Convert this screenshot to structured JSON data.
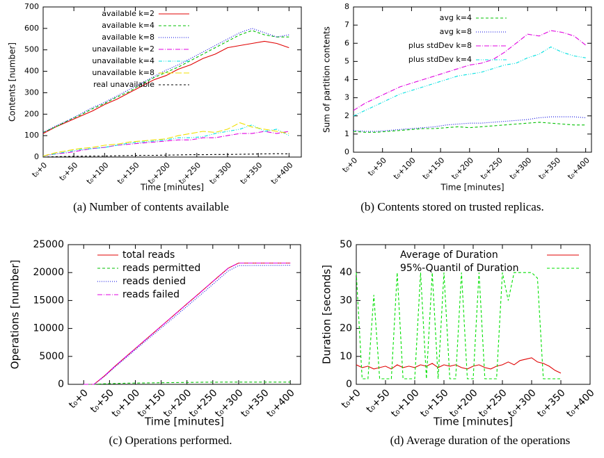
{
  "chart_data": [
    {
      "type": "line",
      "caption": "(a) Number of contents available",
      "xlabel": "Time [minutes]",
      "ylabel": "Contents [number]",
      "legend": "top left",
      "x": [
        0,
        20,
        40,
        60,
        80,
        100,
        120,
        140,
        160,
        180,
        200,
        220,
        240,
        260,
        280,
        300,
        320,
        340,
        360,
        380,
        400
      ],
      "xlim": [
        0,
        420
      ],
      "ylim": [
        0,
        700
      ],
      "xticks": [
        {
          "value": 0,
          "label": "t₀+0"
        },
        {
          "value": 50,
          "label": "t₀+50"
        },
        {
          "value": 100,
          "label": "t₀+100"
        },
        {
          "value": 150,
          "label": "t₀+150"
        },
        {
          "value": 200,
          "label": "t₀+200"
        },
        {
          "value": 250,
          "label": "t₀+250"
        },
        {
          "value": 300,
          "label": "t₀+300"
        },
        {
          "value": 350,
          "label": "t₀+350"
        },
        {
          "value": 400,
          "label": "t₀+400"
        }
      ],
      "yticks": [
        0,
        100,
        200,
        300,
        400,
        500,
        600,
        700
      ],
      "series": [
        {
          "name": "available k=2",
          "color": "#e00000",
          "values": [
            110,
            140,
            165,
            190,
            215,
            245,
            270,
            300,
            330,
            360,
            380,
            410,
            430,
            460,
            480,
            510,
            520,
            530,
            540,
            530,
            510
          ]
        },
        {
          "name": "available k=4",
          "color": "#00c000",
          "values": [
            115,
            140,
            170,
            195,
            225,
            250,
            280,
            305,
            340,
            370,
            395,
            420,
            450,
            480,
            510,
            540,
            570,
            590,
            570,
            560,
            560
          ]
        },
        {
          "name": "available k=8",
          "color": "#0000e0",
          "values": [
            115,
            145,
            170,
            200,
            230,
            255,
            285,
            315,
            345,
            375,
            405,
            430,
            460,
            490,
            520,
            550,
            580,
            600,
            580,
            560,
            570
          ]
        },
        {
          "name": "unavailable k=2",
          "color": "#e000e0",
          "values": [
            5,
            15,
            20,
            30,
            40,
            45,
            55,
            60,
            65,
            70,
            75,
            80,
            80,
            90,
            90,
            100,
            110,
            110,
            120,
            110,
            120
          ]
        },
        {
          "name": "unavailable k=4",
          "color": "#00e0e0",
          "values": [
            5,
            15,
            25,
            35,
            40,
            45,
            55,
            65,
            70,
            75,
            80,
            90,
            90,
            95,
            110,
            120,
            130,
            150,
            120,
            130,
            100
          ]
        },
        {
          "name": "unavailable k=8",
          "color": "#f0e000",
          "values": [
            5,
            20,
            30,
            40,
            45,
            55,
            60,
            70,
            75,
            80,
            85,
            100,
            110,
            120,
            115,
            130,
            160,
            140,
            130,
            120,
            110
          ]
        },
        {
          "name": "real unavailable",
          "color": "#000000",
          "values": [
            0,
            2,
            3,
            4,
            5,
            5,
            6,
            7,
            8,
            8,
            9,
            10,
            11,
            11,
            12,
            12,
            13,
            14,
            15,
            16,
            15
          ]
        }
      ]
    },
    {
      "type": "line",
      "caption": "(b) Contents stored on trusted replicas.",
      "xlabel": "Time [minutes]",
      "ylabel": "Sum of partition contents",
      "legend": "top left",
      "x": [
        0,
        20,
        40,
        60,
        80,
        100,
        120,
        140,
        160,
        180,
        200,
        220,
        240,
        260,
        280,
        300,
        320,
        340,
        360,
        380,
        400
      ],
      "xlim": [
        0,
        410
      ],
      "ylim": [
        0,
        8
      ],
      "xticks": [
        {
          "value": 0,
          "label": "t₀+0"
        },
        {
          "value": 50,
          "label": "t₀+50"
        },
        {
          "value": 100,
          "label": "t₀+100"
        },
        {
          "value": 150,
          "label": "t₀+150"
        },
        {
          "value": 200,
          "label": "t₀+200"
        },
        {
          "value": 250,
          "label": "t₀+250"
        },
        {
          "value": 300,
          "label": "t₀+300"
        },
        {
          "value": 350,
          "label": "t₀+350"
        },
        {
          "value": 400,
          "label": "t₀+400"
        }
      ],
      "yticks": [
        0,
        1,
        2,
        3,
        4,
        5,
        6,
        7,
        8
      ],
      "series": [
        {
          "name": "avg k=4",
          "color": "#00c000",
          "values": [
            1.15,
            1.1,
            1.1,
            1.15,
            1.2,
            1.25,
            1.3,
            1.3,
            1.35,
            1.4,
            1.35,
            1.4,
            1.45,
            1.5,
            1.55,
            1.6,
            1.65,
            1.6,
            1.55,
            1.5,
            1.5
          ]
        },
        {
          "name": "avg k=8",
          "color": "#0000e0",
          "values": [
            1.2,
            1.15,
            1.15,
            1.2,
            1.25,
            1.3,
            1.35,
            1.4,
            1.5,
            1.55,
            1.6,
            1.6,
            1.65,
            1.7,
            1.75,
            1.8,
            1.9,
            1.95,
            1.95,
            1.95,
            1.9
          ]
        },
        {
          "name": "plus stdDev k=8",
          "color": "#e000e0",
          "values": [
            2.3,
            2.7,
            3.0,
            3.3,
            3.6,
            3.8,
            4.0,
            4.2,
            4.4,
            4.6,
            4.8,
            4.9,
            5.1,
            5.5,
            6.0,
            6.5,
            6.4,
            6.7,
            6.6,
            6.4,
            5.9
          ]
        },
        {
          "name": "plus stdDev k=4",
          "color": "#00e0e0",
          "values": [
            2.0,
            2.3,
            2.6,
            2.9,
            3.2,
            3.4,
            3.6,
            3.8,
            4.0,
            4.2,
            4.3,
            4.4,
            4.6,
            4.8,
            4.9,
            5.2,
            5.4,
            5.8,
            5.5,
            5.3,
            5.2
          ]
        }
      ]
    },
    {
      "type": "line",
      "caption": "(c) Operations performed.",
      "xlabel": "Time [minutes]",
      "ylabel": "Operations [number]",
      "legend": "top left",
      "x": [
        0,
        20,
        40,
        60,
        80,
        100,
        120,
        140,
        160,
        180,
        200,
        220,
        240,
        260,
        280,
        300,
        400
      ],
      "xlim": [
        -30,
        420
      ],
      "ylim": [
        0,
        25000
      ],
      "xticks": [
        {
          "value": 0,
          "label": "t₀+0"
        },
        {
          "value": 50,
          "label": "t₀+50"
        },
        {
          "value": 100,
          "label": "t₀+100"
        },
        {
          "value": 150,
          "label": "t₀+150"
        },
        {
          "value": 200,
          "label": "t₀+200"
        },
        {
          "value": 250,
          "label": "t₀+250"
        },
        {
          "value": 300,
          "label": "t₀+300"
        },
        {
          "value": 350,
          "label": "t₀+350"
        },
        {
          "value": 400,
          "label": "t₀+400"
        }
      ],
      "yticks": [
        0,
        5000,
        10000,
        15000,
        20000,
        25000
      ],
      "series": [
        {
          "name": "total reads",
          "color": "#e00000",
          "values": [
            0,
            0,
            1500,
            3200,
            4800,
            6400,
            8000,
            9600,
            11200,
            12800,
            14400,
            16000,
            17600,
            19200,
            20800,
            21700,
            21700
          ]
        },
        {
          "name": "reads permitted",
          "color": "#00c000",
          "values": [
            0,
            0,
            100,
            150,
            200,
            220,
            250,
            270,
            300,
            320,
            340,
            360,
            380,
            390,
            400,
            400,
            400
          ]
        },
        {
          "name": "reads denied",
          "color": "#0000e0",
          "values": [
            0,
            0,
            1400,
            3050,
            4600,
            6200,
            7750,
            9300,
            10850,
            12400,
            13950,
            15550,
            17100,
            18700,
            20300,
            21250,
            21300
          ]
        },
        {
          "name": "reads failed",
          "color": "#e000e0",
          "values": [
            0,
            0,
            1500,
            3200,
            4800,
            6400,
            8000,
            9600,
            11200,
            12800,
            14400,
            16000,
            17600,
            19200,
            20800,
            21700,
            21700
          ]
        }
      ]
    },
    {
      "type": "line",
      "caption": "(d) Average duration of the operations",
      "xlabel": "Time [minutes]",
      "ylabel": "Duration [seconds]",
      "legend": "top left",
      "x": [
        0,
        10,
        20,
        30,
        40,
        50,
        60,
        70,
        80,
        90,
        100,
        110,
        120,
        130,
        140,
        150,
        160,
        170,
        180,
        190,
        200,
        210,
        220,
        230,
        240,
        250,
        260,
        270,
        280,
        290,
        300,
        310,
        320,
        330,
        340,
        350
      ],
      "xlim": [
        0,
        400
      ],
      "ylim": [
        0,
        50
      ],
      "xticks": [
        {
          "value": 0,
          "label": "t₀+0"
        },
        {
          "value": 50,
          "label": "t₀+50"
        },
        {
          "value": 100,
          "label": "t₀+100"
        },
        {
          "value": 150,
          "label": "t₀+150"
        },
        {
          "value": 200,
          "label": "t₀+200"
        },
        {
          "value": 250,
          "label": "t₀+250"
        },
        {
          "value": 300,
          "label": "t₀+300"
        },
        {
          "value": 350,
          "label": "t₀+350"
        },
        {
          "value": 400,
          "label": "t₀+400"
        }
      ],
      "yticks": [
        0,
        10,
        20,
        30,
        40,
        50
      ],
      "series": [
        {
          "name": "Average of Duration",
          "color": "#e00000",
          "values": [
            7,
            6,
            6.5,
            5.5,
            6,
            6.5,
            5.5,
            7,
            6,
            6.5,
            6,
            7,
            6.5,
            7.5,
            6,
            7,
            6.5,
            7,
            6,
            5.5,
            6.5,
            7,
            6,
            5.5,
            6.5,
            7,
            8,
            7,
            8.5,
            9,
            9.5,
            8,
            7.5,
            6.5,
            5,
            4
          ]
        },
        {
          "name": "95%-Quantil of Duration",
          "color": "#00e000",
          "values": [
            40,
            2,
            2,
            32,
            2,
            2,
            2,
            40,
            2,
            2,
            2,
            40,
            2,
            40,
            2,
            40,
            2,
            2,
            40,
            2,
            2,
            40,
            2,
            2,
            2,
            40,
            30,
            40,
            40,
            40,
            40,
            38,
            2,
            2,
            2,
            2
          ]
        }
      ]
    }
  ]
}
